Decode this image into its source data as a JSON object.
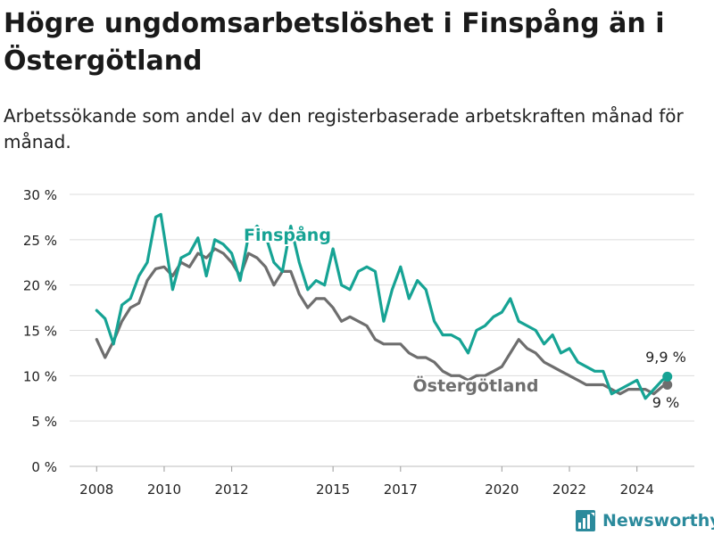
{
  "title": "Högre ungdomsarbetslöshet i Finspång än i Östergötland",
  "subtitle": "Arbetssökande som andel av den registerbaserade arbetskraften månad för månad.",
  "brand": "Newsworthy",
  "colors": {
    "finspang": "#16a394",
    "ostergotland": "#6e6e6e",
    "grid": "#dcdcdc",
    "text": "#222222",
    "brand": "#2b8a9c"
  },
  "chart_data": {
    "type": "line",
    "title": "Högre ungdomsarbetslöshet i Finspång än i Östergötland",
    "subtitle": "Arbetssökande som andel av den registerbaserade arbetskraften månad för månad.",
    "xlabel": "",
    "ylabel": "",
    "x_range": [
      2007.2,
      2025.7
    ],
    "ylim": [
      0,
      30
    ],
    "y_ticks": [
      0,
      5,
      10,
      15,
      20,
      25,
      30
    ],
    "y_tick_labels": [
      "0 %",
      "5 %",
      "10 %",
      "15 %",
      "20 %",
      "25 %",
      "30 %"
    ],
    "x_ticks": [
      2008,
      2010,
      2012,
      2015,
      2017,
      2020,
      2022,
      2024
    ],
    "x_tick_labels": [
      "2008",
      "2010",
      "2012",
      "2015",
      "2017",
      "2020",
      "2022",
      "2024"
    ],
    "grid": true,
    "legend": "direct labels on lines",
    "end_labels": {
      "finspang": "9,9 %",
      "ostergotland": "9 %"
    },
    "series": [
      {
        "name": "Finspång",
        "color": "#16a394",
        "x": [
          2008.0,
          2008.25,
          2008.5,
          2008.75,
          2009.0,
          2009.25,
          2009.5,
          2009.75,
          2009.9,
          2010.0,
          2010.25,
          2010.5,
          2010.75,
          2011.0,
          2011.25,
          2011.5,
          2011.75,
          2012.0,
          2012.25,
          2012.5,
          2012.75,
          2013.0,
          2013.25,
          2013.5,
          2013.75,
          2014.0,
          2014.25,
          2014.5,
          2014.75,
          2015.0,
          2015.25,
          2015.5,
          2015.75,
          2016.0,
          2016.25,
          2016.5,
          2016.75,
          2017.0,
          2017.25,
          2017.5,
          2017.75,
          2018.0,
          2018.25,
          2018.5,
          2018.75,
          2019.0,
          2019.25,
          2019.5,
          2019.75,
          2020.0,
          2020.25,
          2020.5,
          2020.75,
          2021.0,
          2021.25,
          2021.5,
          2021.75,
          2022.0,
          2022.25,
          2022.5,
          2022.75,
          2023.0,
          2023.25,
          2023.5,
          2023.75,
          2024.0,
          2024.25,
          2024.5,
          2024.75,
          2024.9
        ],
        "values": [
          17.2,
          16.3,
          13.5,
          17.8,
          18.5,
          21.0,
          22.5,
          27.5,
          27.8,
          25.5,
          19.5,
          23.0,
          23.5,
          25.2,
          21.0,
          25.0,
          24.5,
          23.5,
          20.5,
          25.5,
          26.5,
          25.5,
          22.5,
          21.5,
          26.5,
          22.5,
          19.5,
          20.5,
          20.0,
          24.0,
          20.0,
          19.5,
          21.5,
          22.0,
          21.5,
          16.0,
          19.5,
          22.0,
          18.5,
          20.5,
          19.5,
          16.0,
          14.5,
          14.5,
          14.0,
          12.5,
          15.0,
          15.5,
          16.5,
          17.0,
          18.5,
          16.0,
          15.5,
          15.0,
          13.5,
          14.5,
          12.5,
          13.0,
          11.5,
          11.0,
          10.5,
          10.5,
          8.0,
          8.5,
          9.0,
          9.5,
          7.5,
          8.5,
          9.5,
          9.9
        ]
      },
      {
        "name": "Östergötland",
        "color": "#6e6e6e",
        "x": [
          2008.0,
          2008.25,
          2008.5,
          2008.75,
          2009.0,
          2009.25,
          2009.5,
          2009.75,
          2010.0,
          2010.25,
          2010.5,
          2010.75,
          2011.0,
          2011.25,
          2011.5,
          2011.75,
          2012.0,
          2012.25,
          2012.5,
          2012.75,
          2013.0,
          2013.25,
          2013.5,
          2013.75,
          2014.0,
          2014.25,
          2014.5,
          2014.75,
          2015.0,
          2015.25,
          2015.5,
          2015.75,
          2016.0,
          2016.25,
          2016.5,
          2016.75,
          2017.0,
          2017.25,
          2017.5,
          2017.75,
          2018.0,
          2018.25,
          2018.5,
          2018.75,
          2019.0,
          2019.25,
          2019.5,
          2019.75,
          2020.0,
          2020.25,
          2020.5,
          2020.75,
          2021.0,
          2021.25,
          2021.5,
          2021.75,
          2022.0,
          2022.25,
          2022.5,
          2022.75,
          2023.0,
          2023.25,
          2023.5,
          2023.75,
          2024.0,
          2024.25,
          2024.5,
          2024.75,
          2024.9
        ],
        "values": [
          14.0,
          12.0,
          13.8,
          16.0,
          17.5,
          18.0,
          20.5,
          21.8,
          22.0,
          21.0,
          22.5,
          22.0,
          23.5,
          23.0,
          24.0,
          23.5,
          22.5,
          21.0,
          23.5,
          23.0,
          22.0,
          20.0,
          21.5,
          21.5,
          19.0,
          17.5,
          18.5,
          18.5,
          17.5,
          16.0,
          16.5,
          16.0,
          15.5,
          14.0,
          13.5,
          13.5,
          13.5,
          12.5,
          12.0,
          12.0,
          11.5,
          10.5,
          10.0,
          10.0,
          9.5,
          10.0,
          10.0,
          10.5,
          11.0,
          12.5,
          14.0,
          13.0,
          12.5,
          11.5,
          11.0,
          10.5,
          10.0,
          9.5,
          9.0,
          9.0,
          9.0,
          8.5,
          8.0,
          8.5,
          8.5,
          8.5,
          8.0,
          8.8,
          9.0
        ]
      }
    ]
  }
}
